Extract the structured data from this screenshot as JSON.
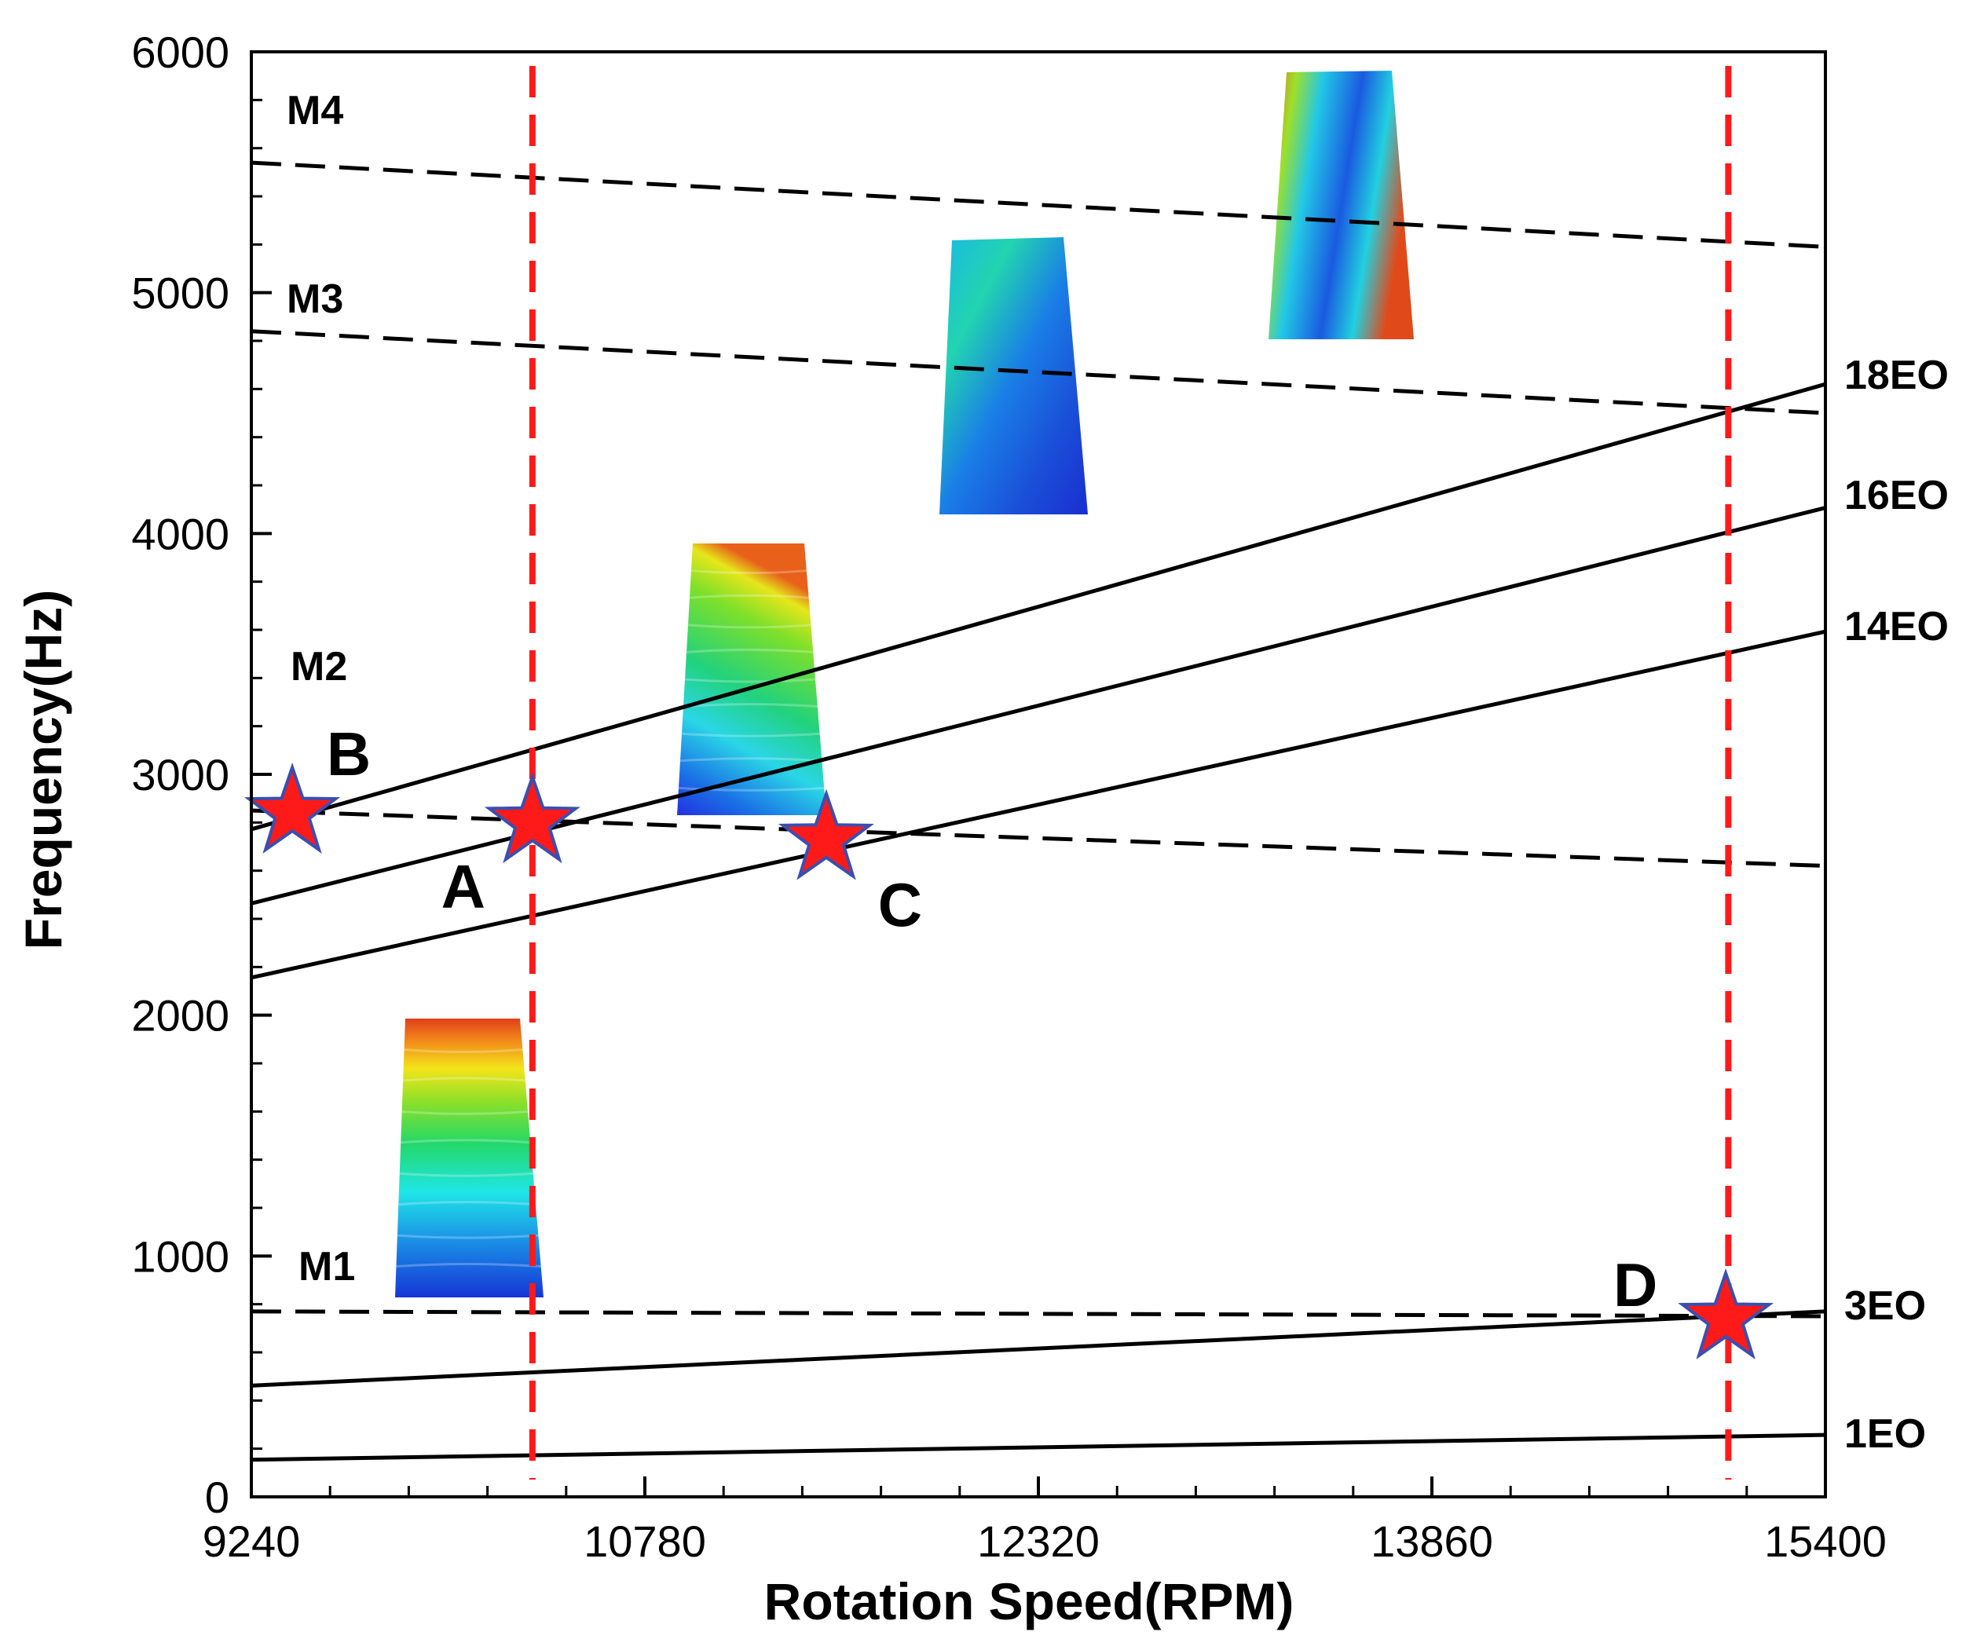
{
  "chart_data": {
    "type": "line",
    "title": "",
    "xlabel": "Rotation Speed(RPM)",
    "ylabel": "Frequency(Hz)",
    "xlim": [
      9240,
      15400
    ],
    "ylim": [
      0,
      6000
    ],
    "x_ticks": [
      "9240",
      "10780",
      "12320",
      "13860",
      "15400"
    ],
    "y_ticks": [
      "0",
      "1000",
      "2000",
      "3000",
      "4000",
      "5000",
      "6000"
    ],
    "x_tick_values": [
      9240,
      10780,
      12320,
      13860,
      15400
    ],
    "y_tick_values": [
      0,
      1000,
      2000,
      3000,
      4000,
      5000,
      6000
    ],
    "x": [
      9240,
      15400
    ],
    "mode_series": [
      {
        "name": "M1",
        "values": [
          770,
          750
        ]
      },
      {
        "name": "M2",
        "values": [
          2850,
          2620
        ]
      },
      {
        "name": "M3",
        "values": [
          4840,
          4500
        ]
      },
      {
        "name": "M4",
        "values": [
          5540,
          5190
        ]
      }
    ],
    "eo_series": [
      {
        "name": "1EO",
        "values": [
          154,
          257
        ]
      },
      {
        "name": "3EO",
        "values": [
          462,
          770
        ]
      },
      {
        "name": "14EO",
        "values": [
          2156,
          3593
        ]
      },
      {
        "name": "16EO",
        "values": [
          2464,
          4107
        ]
      },
      {
        "name": "18EO",
        "values": [
          2772,
          4620
        ]
      }
    ],
    "operating_speeds": [
      10340,
      15020
    ],
    "resonance_points": [
      {
        "label": "A",
        "rpm": 10340,
        "freq": 2800
      },
      {
        "label": "B",
        "rpm": 9400,
        "freq": 2840
      },
      {
        "label": "C",
        "rpm": 11490,
        "freq": 2730
      },
      {
        "label": "D",
        "rpm": 15010,
        "freq": 740
      }
    ],
    "mode_shape_images": [
      "M1",
      "M2",
      "M3",
      "M4"
    ]
  },
  "colors": {
    "line": "#000000",
    "operating_speed_line": "#ff1a1a",
    "star_fill": "#ff1a1a",
    "star_stroke": "#3a4fb0"
  }
}
